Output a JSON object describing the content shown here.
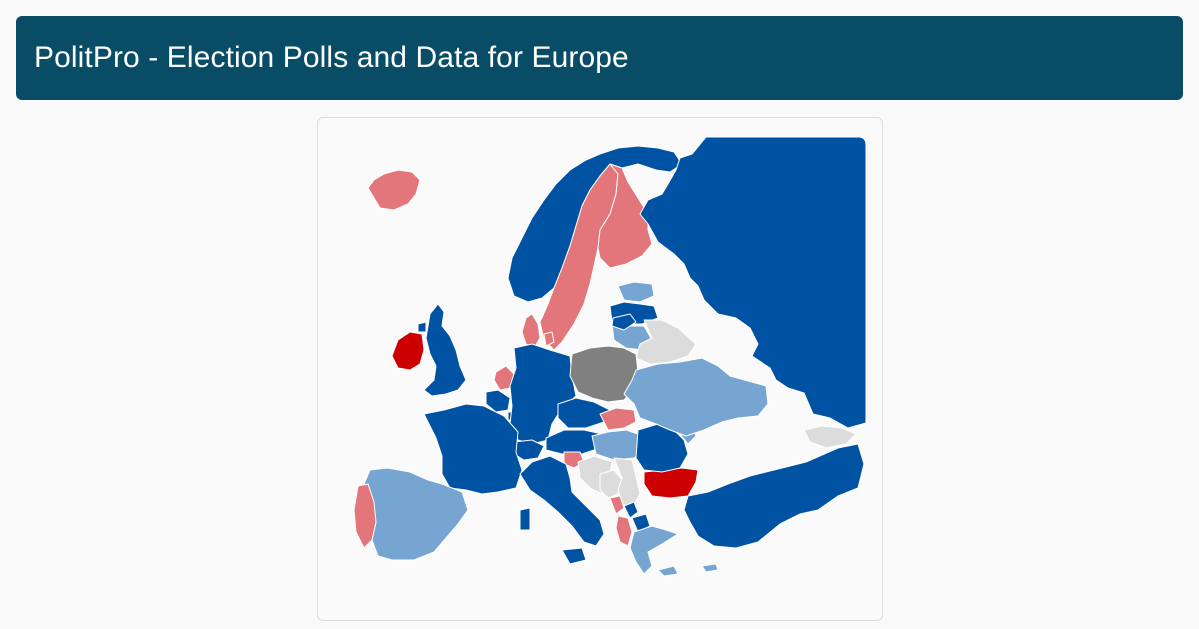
{
  "header": {
    "title": "PolitPro - Election Polls and Data for Europe"
  },
  "map": {
    "colors": {
      "dark_blue": "#0052a3",
      "light_blue": "#77a5d1",
      "pink": "#e2767a",
      "red": "#cc0000",
      "gray": "#808080",
      "light_gray": "#dcdcdc",
      "header_bg": "#084d65",
      "background": "#fafafa"
    },
    "regions": [
      {
        "name": "Iceland",
        "color": "pink"
      },
      {
        "name": "Ireland",
        "color": "red"
      },
      {
        "name": "United Kingdom",
        "color": "dark_blue"
      },
      {
        "name": "Norway",
        "color": "dark_blue"
      },
      {
        "name": "Sweden",
        "color": "pink"
      },
      {
        "name": "Finland",
        "color": "pink"
      },
      {
        "name": "Denmark",
        "color": "pink"
      },
      {
        "name": "Estonia",
        "color": "light_blue"
      },
      {
        "name": "Latvia",
        "color": "dark_blue"
      },
      {
        "name": "Lithuania",
        "color": "light_blue"
      },
      {
        "name": "Belarus",
        "color": "light_gray"
      },
      {
        "name": "Russia",
        "color": "dark_blue"
      },
      {
        "name": "Netherlands",
        "color": "pink"
      },
      {
        "name": "Belgium",
        "color": "dark_blue"
      },
      {
        "name": "Luxembourg",
        "color": "dark_blue"
      },
      {
        "name": "Germany",
        "color": "dark_blue"
      },
      {
        "name": "Poland",
        "color": "gray"
      },
      {
        "name": "Czechia",
        "color": "dark_blue"
      },
      {
        "name": "Slovakia",
        "color": "pink"
      },
      {
        "name": "Austria",
        "color": "dark_blue"
      },
      {
        "name": "Switzerland",
        "color": "dark_blue"
      },
      {
        "name": "Hungary",
        "color": "light_blue"
      },
      {
        "name": "Slovenia",
        "color": "pink"
      },
      {
        "name": "Croatia",
        "color": "light_gray"
      },
      {
        "name": "Bosnia and Herzegovina",
        "color": "light_gray"
      },
      {
        "name": "Serbia",
        "color": "light_gray"
      },
      {
        "name": "Montenegro",
        "color": "pink"
      },
      {
        "name": "Kosovo",
        "color": "dark_blue"
      },
      {
        "name": "Albania",
        "color": "pink"
      },
      {
        "name": "North Macedonia",
        "color": "dark_blue"
      },
      {
        "name": "Greece",
        "color": "light_blue"
      },
      {
        "name": "Bulgaria",
        "color": "red"
      },
      {
        "name": "Romania",
        "color": "dark_blue"
      },
      {
        "name": "Moldova",
        "color": "light_blue"
      },
      {
        "name": "Ukraine",
        "color": "light_blue"
      },
      {
        "name": "Turkey",
        "color": "dark_blue"
      },
      {
        "name": "Georgia",
        "color": "light_gray"
      },
      {
        "name": "France",
        "color": "dark_blue"
      },
      {
        "name": "Spain",
        "color": "light_blue"
      },
      {
        "name": "Portugal",
        "color": "pink"
      },
      {
        "name": "Italy",
        "color": "dark_blue"
      },
      {
        "name": "Cyprus",
        "color": "light_blue"
      }
    ]
  }
}
